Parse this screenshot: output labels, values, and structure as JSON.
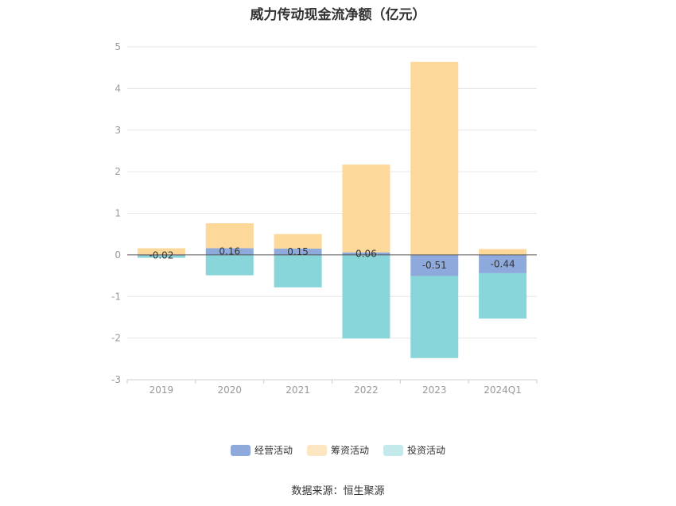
{
  "chart_data": {
    "type": "bar",
    "stacked": true,
    "title": "威力传动现金流净额（亿元）",
    "categories": [
      "2019",
      "2020",
      "2021",
      "2022",
      "2023",
      "2024Q1"
    ],
    "series": [
      {
        "name": "经营活动",
        "color": "#8eaadc",
        "values": [
          -0.02,
          0.16,
          0.15,
          0.06,
          -0.51,
          -0.44
        ],
        "labels": [
          "-0.02",
          "0.16",
          "0.15",
          "0.06",
          "-0.51",
          "-0.44"
        ]
      },
      {
        "name": "筹资活动",
        "color": "#fdd89b",
        "values": [
          0.16,
          0.6,
          0.35,
          2.11,
          4.64,
          0.14
        ]
      },
      {
        "name": "投资活动",
        "color": "#89d6da",
        "values": [
          -0.05,
          -0.49,
          -0.78,
          -2.01,
          -1.97,
          -1.09
        ]
      }
    ],
    "ylim": [
      -3,
      5
    ],
    "yticks": [
      "-3",
      "-2",
      "-1",
      "0",
      "1",
      "2",
      "3",
      "4",
      "5"
    ],
    "grid": true,
    "legend_position": "bottom"
  },
  "legend": [
    {
      "label": "经营活动",
      "color": "#8eaadc"
    },
    {
      "label": "筹资活动",
      "color": "#fde7c3"
    },
    {
      "label": "投资活动",
      "color": "#c4e9ea"
    }
  ],
  "source": "数据来源：恒生聚源"
}
